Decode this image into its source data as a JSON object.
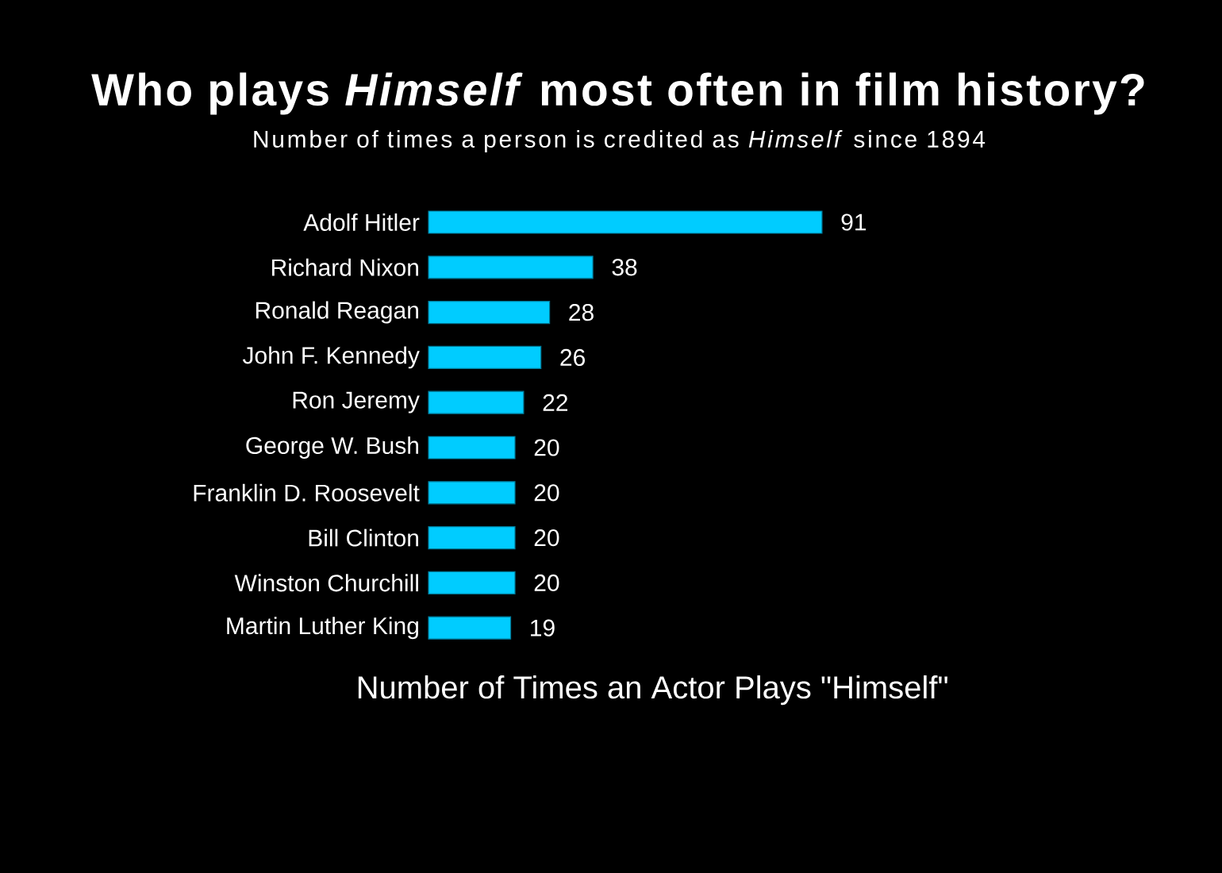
{
  "chart_data": {
    "type": "bar",
    "orientation": "horizontal",
    "title": "Who plays *Himself* most often in film history?",
    "subtitle": "Number of times a person is credited as *Himself* since 1894",
    "xlabel": "Number of Times an Actor Plays \"Himself\"",
    "categories": [
      "Adolf Hitler",
      "Richard Nixon",
      "Ronald Reagan",
      "John F. Kennedy",
      "Ron Jeremy",
      "George W. Bush",
      "Franklin D. Roosevelt",
      "Bill Clinton",
      "Winston Churchill",
      "Martin Luther King"
    ],
    "values": [
      91,
      38,
      28,
      26,
      22,
      20,
      20,
      20,
      20,
      19
    ],
    "color": "#00ccff",
    "data_labels": true
  }
}
